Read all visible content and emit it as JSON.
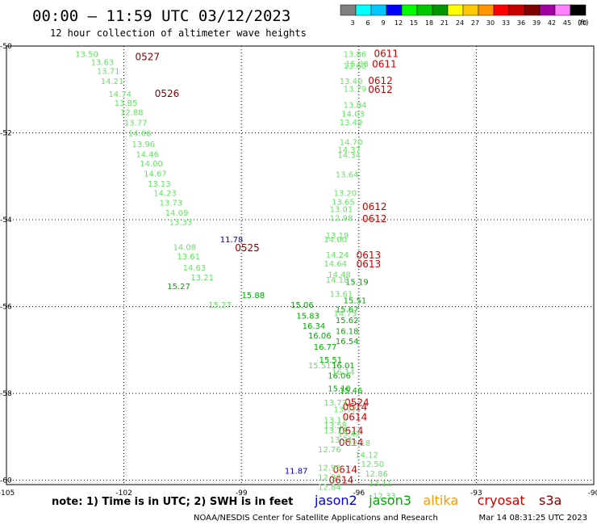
{
  "chart_data": {
    "type": "scatter",
    "title": "00:00 – 11:59 UTC 03/12/2023",
    "subtitle": "12 hour collection of altimeter wave heights",
    "xlim": [
      -105,
      -90
    ],
    "ylim": [
      -60.1,
      -50
    ],
    "x_ticks": [
      -105,
      -102,
      -99,
      -96,
      -93,
      -90
    ],
    "x_tick_labels": [
      "-105",
      "-102",
      "-99",
      "-96",
      "-93",
      "-90"
    ],
    "y_ticks": [
      -50,
      -52,
      -54,
      -56,
      -58,
      -60
    ],
    "y_tick_labels": [
      "-50",
      "-52",
      "-54",
      "-56",
      "-58",
      "-60"
    ],
    "grid": true,
    "colorbar": {
      "unit_label": "(ft)",
      "ticks": [
        "3",
        "6",
        "9",
        "12",
        "15",
        "18",
        "21",
        "24",
        "27",
        "30",
        "33",
        "36",
        "39",
        "42",
        "45",
        "70"
      ],
      "colors": [
        "#808080",
        "#00ffff",
        "#00c8ff",
        "#0000ff",
        "#00ff00",
        "#00c800",
        "#009600",
        "#ffff00",
        "#ffc800",
        "#ff9600",
        "#ff0000",
        "#c80000",
        "#800000",
        "#a000a0",
        "#ff80ff",
        "#000000"
      ]
    },
    "series": [
      {
        "name": "jason2",
        "color": "#0000cc",
        "points": [
          {
            "lon": -99.25,
            "lat": -54.45,
            "label": "11.78",
            "val": 11.78
          },
          {
            "lon": -97.6,
            "lat": -59.77,
            "label": "11.87",
            "val": 11.87
          }
        ]
      },
      {
        "name": "jason3",
        "color": "#00aa00",
        "points": [
          {
            "lon": -100.6,
            "lat": -55.52,
            "label": "15.27",
            "val": 15.27
          },
          {
            "lon": -98.7,
            "lat": -55.73,
            "label": "15.88",
            "val": 15.88
          },
          {
            "lon": -97.45,
            "lat": -55.95,
            "label": "15.06",
            "val": 15.06
          },
          {
            "lon": -97.3,
            "lat": -56.2,
            "label": "15.83",
            "val": 15.83
          },
          {
            "lon": -97.15,
            "lat": -56.44,
            "label": "16.34",
            "val": 16.34
          },
          {
            "lon": -97.0,
            "lat": -56.66,
            "label": "16.06",
            "val": 16.06
          },
          {
            "lon": -96.86,
            "lat": -56.92,
            "label": "16.77",
            "val": 16.77
          },
          {
            "lon": -96.72,
            "lat": -57.22,
            "label": "15.51",
            "val": 15.51
          },
          {
            "lon": -96.3,
            "lat": -56.31,
            "label": "15.62",
            "val": 15.62
          },
          {
            "lon": -96.3,
            "lat": -56.56,
            "label": "16.18",
            "val": 16.18
          },
          {
            "lon": -96.3,
            "lat": -56.79,
            "label": "16.54",
            "val": 16.54
          },
          {
            "lon": -96.3,
            "lat": -56.05,
            "label": "15.67",
            "val": 15.67
          },
          {
            "lon": -96.05,
            "lat": -55.42,
            "label": "15.19",
            "val": 15.19
          },
          {
            "lon": -96.1,
            "lat": -55.85,
            "label": "15.51",
            "val": 15.51
          },
          {
            "lon": -96.4,
            "lat": -57.35,
            "label": "16.01",
            "val": 16.01
          },
          {
            "lon": -96.5,
            "lat": -57.58,
            "label": "16.06",
            "val": 16.06
          },
          {
            "lon": -96.5,
            "lat": -57.88,
            "label": "15.10",
            "val": 15.1
          },
          {
            "lon": -96.2,
            "lat": -57.92,
            "label": "15.46",
            "val": 15.46
          }
        ]
      },
      {
        "name": "altika",
        "color": "#ff9900",
        "points": []
      },
      {
        "name": "cryosat",
        "color": "#cc0000",
        "points": [
          {
            "lon": -95.3,
            "lat": -50.18,
            "label": "0611",
            "val": 30
          },
          {
            "lon": -95.35,
            "lat": -50.42,
            "label": "0611",
            "val": 30
          },
          {
            "lon": -95.45,
            "lat": -50.8,
            "label": "0612",
            "val": 30
          },
          {
            "lon": -95.45,
            "lat": -51.0,
            "label": "0612",
            "val": 30
          },
          {
            "lon": -95.6,
            "lat": -53.7,
            "label": "0612",
            "val": 30
          },
          {
            "lon": -95.6,
            "lat": -53.98,
            "label": "0612",
            "val": 30
          },
          {
            "lon": -95.75,
            "lat": -54.82,
            "label": "0613",
            "val": 30
          },
          {
            "lon": -95.75,
            "lat": -55.02,
            "label": "0613",
            "val": 30
          },
          {
            "lon": -96.1,
            "lat": -58.31,
            "label": "0614",
            "val": 30
          },
          {
            "lon": -96.1,
            "lat": -58.55,
            "label": "0614",
            "val": 30
          },
          {
            "lon": -96.2,
            "lat": -58.86,
            "label": "0614",
            "val": 30
          },
          {
            "lon": -96.2,
            "lat": -59.13,
            "label": "0614",
            "val": 30
          },
          {
            "lon": -96.35,
            "lat": -59.76,
            "label": "0614",
            "val": 30
          },
          {
            "lon": -96.45,
            "lat": -60.0,
            "label": "0614",
            "val": 30
          },
          {
            "lon": -96.05,
            "lat": -58.21,
            "label": "0524",
            "val": 36
          }
        ]
      },
      {
        "name": "s3a",
        "color": "#800000",
        "points": [
          {
            "lon": -101.4,
            "lat": -50.25,
            "label": "0527",
            "val": 36
          },
          {
            "lon": -100.9,
            "lat": -51.1,
            "label": "0526",
            "val": 36
          },
          {
            "lon": -98.85,
            "lat": -54.65,
            "label": "0525",
            "val": 36
          }
        ]
      },
      {
        "name": "light",
        "color": "#66e266",
        "points": [
          {
            "lon": -102.95,
            "lat": -50.18,
            "label": "13.50",
            "val": 13.5
          },
          {
            "lon": -102.55,
            "lat": -50.36,
            "label": "13.63",
            "val": 13.63
          },
          {
            "lon": -102.4,
            "lat": -50.57,
            "label": "13.71",
            "val": 13.71
          },
          {
            "lon": -102.3,
            "lat": -50.8,
            "label": "14.21",
            "val": 14.21
          },
          {
            "lon": -102.1,
            "lat": -51.1,
            "label": "14.74",
            "val": 14.74
          },
          {
            "lon": -101.95,
            "lat": -51.3,
            "label": "13.85",
            "val": 13.85
          },
          {
            "lon": -101.8,
            "lat": -51.52,
            "label": "12.88",
            "val": 12.88
          },
          {
            "lon": -101.7,
            "lat": -51.76,
            "label": "13.77",
            "val": 13.77
          },
          {
            "lon": -101.6,
            "lat": -52.0,
            "label": "14.66",
            "val": 14.66
          },
          {
            "lon": -101.5,
            "lat": -52.25,
            "label": "13.96",
            "val": 13.96
          },
          {
            "lon": -101.4,
            "lat": -52.48,
            "label": "14.46",
            "val": 14.46
          },
          {
            "lon": -101.3,
            "lat": -52.7,
            "label": "14.00",
            "val": 14.0
          },
          {
            "lon": -101.2,
            "lat": -52.93,
            "label": "14.67",
            "val": 14.67
          },
          {
            "lon": -101.1,
            "lat": -53.16,
            "label": "13.13",
            "val": 13.13
          },
          {
            "lon": -100.95,
            "lat": -53.38,
            "label": "14.23",
            "val": 14.23
          },
          {
            "lon": -100.8,
            "lat": -53.6,
            "label": "13.73",
            "val": 13.73
          },
          {
            "lon": -100.65,
            "lat": -53.83,
            "label": "14.09",
            "val": 14.09
          },
          {
            "lon": -100.55,
            "lat": -54.05,
            "label": "13.33",
            "val": 13.33
          },
          {
            "lon": -100.45,
            "lat": -54.62,
            "label": "14.08",
            "val": 14.08
          },
          {
            "lon": -100.35,
            "lat": -54.84,
            "label": "13.61",
            "val": 13.61
          },
          {
            "lon": -100.2,
            "lat": -55.1,
            "label": "14.63",
            "val": 14.63
          },
          {
            "lon": -100.0,
            "lat": -55.32,
            "label": "13.21",
            "val": 13.21
          },
          {
            "lon": -99.55,
            "lat": -55.95,
            "label": "15.27",
            "val": 15.27
          },
          {
            "lon": -97.0,
            "lat": -57.35,
            "label": "15.51",
            "val": 15.51
          },
          {
            "lon": -96.1,
            "lat": -50.18,
            "label": "13.86",
            "val": 13.86
          },
          {
            "lon": -96.05,
            "lat": -50.4,
            "label": "15.08",
            "val": 15.08
          },
          {
            "lon": -96.1,
            "lat": -50.45,
            "label": "13.60",
            "val": 13.6
          },
          {
            "lon": -96.2,
            "lat": -50.8,
            "label": "13.40",
            "val": 13.4
          },
          {
            "lon": -96.1,
            "lat": -50.98,
            "label": "13.79",
            "val": 13.79
          },
          {
            "lon": -96.1,
            "lat": -51.35,
            "label": "13.84",
            "val": 13.84
          },
          {
            "lon": -96.15,
            "lat": -51.55,
            "label": "14.03",
            "val": 14.03
          },
          {
            "lon": -96.2,
            "lat": -51.75,
            "label": "13.49",
            "val": 13.49
          },
          {
            "lon": -96.2,
            "lat": -52.2,
            "label": "14.70",
            "val": 14.7
          },
          {
            "lon": -96.25,
            "lat": -52.38,
            "label": "14.37",
            "val": 14.37
          },
          {
            "lon": -96.25,
            "lat": -52.5,
            "label": "14.34",
            "val": 14.34
          },
          {
            "lon": -96.3,
            "lat": -52.95,
            "label": "13.64",
            "val": 13.64
          },
          {
            "lon": -96.35,
            "lat": -53.38,
            "label": "13.20",
            "val": 13.2
          },
          {
            "lon": -96.4,
            "lat": -53.58,
            "label": "13.65",
            "val": 13.65
          },
          {
            "lon": -96.45,
            "lat": -53.75,
            "label": "13.01",
            "val": 13.01
          },
          {
            "lon": -96.45,
            "lat": -53.95,
            "label": "12.98",
            "val": 12.98
          },
          {
            "lon": -96.55,
            "lat": -54.35,
            "label": "13.19",
            "val": 13.19
          },
          {
            "lon": -96.6,
            "lat": -54.45,
            "label": "14.00",
            "val": 14.0
          },
          {
            "lon": -96.55,
            "lat": -54.8,
            "label": "14.24",
            "val": 14.24
          },
          {
            "lon": -96.6,
            "lat": -55.0,
            "label": "14.64",
            "val": 14.64
          },
          {
            "lon": -96.5,
            "lat": -55.25,
            "label": "14.48",
            "val": 14.48
          },
          {
            "lon": -96.55,
            "lat": -55.38,
            "label": "14.18",
            "val": 14.18
          },
          {
            "lon": -96.45,
            "lat": -55.7,
            "label": "13.61",
            "val": 13.61
          },
          {
            "lon": -96.35,
            "lat": -56.15,
            "label": "14.75",
            "val": 14.75
          },
          {
            "lon": -96.4,
            "lat": -57.5,
            "label": "16.14",
            "val": 16.14
          },
          {
            "lon": -96.6,
            "lat": -58.2,
            "label": "13.73",
            "val": 13.73
          },
          {
            "lon": -96.35,
            "lat": -58.36,
            "label": "13.77",
            "val": 13.77
          },
          {
            "lon": -96.6,
            "lat": -58.6,
            "label": "13.17",
            "val": 13.17
          },
          {
            "lon": -96.6,
            "lat": -58.72,
            "label": "13.58",
            "val": 13.58
          },
          {
            "lon": -96.6,
            "lat": -58.84,
            "label": "13.12",
            "val": 13.12
          },
          {
            "lon": -96.25,
            "lat": -58.92,
            "label": "13.42",
            "val": 13.42
          },
          {
            "lon": -96.0,
            "lat": -59.13,
            "label": "12.18",
            "val": 12.18
          },
          {
            "lon": -96.45,
            "lat": -59.06,
            "label": "13.21",
            "val": 13.21
          },
          {
            "lon": -96.75,
            "lat": -59.28,
            "label": "12.76",
            "val": 12.76
          },
          {
            "lon": -95.8,
            "lat": -59.4,
            "label": "14.12",
            "val": 14.12
          },
          {
            "lon": -95.65,
            "lat": -59.62,
            "label": "12.50",
            "val": 12.5
          },
          {
            "lon": -96.75,
            "lat": -59.7,
            "label": "12.96",
            "val": 12.96
          },
          {
            "lon": -95.55,
            "lat": -59.84,
            "label": "12.86",
            "val": 12.86
          },
          {
            "lon": -96.75,
            "lat": -59.92,
            "label": "12.90",
            "val": 12.9
          },
          {
            "lon": -95.45,
            "lat": -60.06,
            "label": "13.11",
            "val": 13.11
          },
          {
            "lon": -96.75,
            "lat": -60.15,
            "label": "12.84",
            "val": 12.84
          },
          {
            "lon": -95.35,
            "lat": -60.35,
            "label": "12.33",
            "val": 12.33
          }
        ]
      }
    ]
  },
  "footer": {
    "note": "note: 1) Time is in UTC; 2) SWH is in feet",
    "credit": "NOAA/NESDIS Center for Satellite Applications and Research",
    "timestamp": "Mar 14 08:31:25 UTC 2023"
  },
  "legend": [
    {
      "label": "jason2",
      "color": "#0000cc"
    },
    {
      "label": "jason3",
      "color": "#00aa00"
    },
    {
      "label": "altika",
      "color": "#ff9900"
    },
    {
      "label": "cryosat",
      "color": "#cc0000"
    },
    {
      "label": "s3a",
      "color": "#800000"
    }
  ]
}
